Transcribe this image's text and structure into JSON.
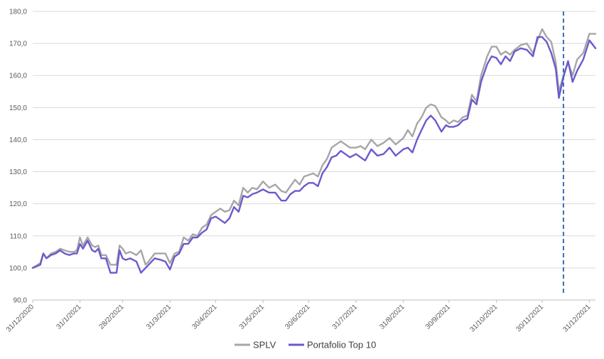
{
  "chart_data": {
    "type": "line",
    "title": "",
    "xlabel": "",
    "ylabel": "",
    "ylim": [
      90,
      180
    ],
    "y_ticks": [
      "90,0",
      "100,0",
      "110,0",
      "120,0",
      "130,0",
      "140,0",
      "150,0",
      "160,0",
      "170,0",
      "180,0"
    ],
    "x_ticks": [
      "31/12/2020",
      "31/1/2021",
      "28/2/2021",
      "31/3/2021",
      "30/4/2021",
      "31/5/2021",
      "30/6/2021",
      "31/7/2021",
      "31/8/2021",
      "30/9/2021",
      "31/10/2021",
      "30/11/2021",
      "31/12/2021"
    ],
    "grid": "horizontal",
    "legend_position": "bottom",
    "vertical_marker": {
      "x": "2021-12-14",
      "style": "dashed"
    },
    "series": [
      {
        "name": "SPLV",
        "color": "#a6a6a6",
        "points": [
          [
            "2020-12-31",
            100.0
          ],
          [
            "2021-01-05",
            101.5
          ],
          [
            "2021-01-07",
            104.5
          ],
          [
            "2021-01-09",
            103.0
          ],
          [
            "2021-01-12",
            104.5
          ],
          [
            "2021-01-15",
            105.0
          ],
          [
            "2021-01-18",
            106.0
          ],
          [
            "2021-01-21",
            105.5
          ],
          [
            "2021-01-24",
            105.0
          ],
          [
            "2021-01-27",
            105.0
          ],
          [
            "2021-01-29",
            105.5
          ],
          [
            "2021-01-31",
            109.5
          ],
          [
            "2021-02-02",
            107.0
          ],
          [
            "2021-02-05",
            109.5
          ],
          [
            "2021-02-08",
            107.0
          ],
          [
            "2021-02-10",
            106.5
          ],
          [
            "2021-02-12",
            107.0
          ],
          [
            "2021-02-14",
            104.0
          ],
          [
            "2021-02-17",
            104.0
          ],
          [
            "2021-02-20",
            101.0
          ],
          [
            "2021-02-24",
            101.0
          ],
          [
            "2021-02-26",
            107.0
          ],
          [
            "2021-02-28",
            106.0
          ],
          [
            "2021-03-02",
            104.5
          ],
          [
            "2021-03-05",
            105.0
          ],
          [
            "2021-03-09",
            104.0
          ],
          [
            "2021-03-12",
            105.5
          ],
          [
            "2021-03-15",
            101.0
          ],
          [
            "2021-03-17",
            102.0
          ],
          [
            "2021-03-21",
            104.5
          ],
          [
            "2021-03-25",
            104.5
          ],
          [
            "2021-03-28",
            104.5
          ],
          [
            "2021-03-31",
            101.5
          ],
          [
            "2021-04-03",
            104.5
          ],
          [
            "2021-04-06",
            105.0
          ],
          [
            "2021-04-09",
            109.5
          ],
          [
            "2021-04-12",
            108.5
          ],
          [
            "2021-04-15",
            110.5
          ],
          [
            "2021-04-18",
            110.0
          ],
          [
            "2021-04-21",
            112.5
          ],
          [
            "2021-04-24",
            113.5
          ],
          [
            "2021-04-27",
            116.5
          ],
          [
            "2021-04-30",
            117.5
          ],
          [
            "2021-05-03",
            118.5
          ],
          [
            "2021-05-06",
            117.5
          ],
          [
            "2021-05-09",
            118.0
          ],
          [
            "2021-05-12",
            121.0
          ],
          [
            "2021-05-15",
            119.5
          ],
          [
            "2021-05-18",
            125.0
          ],
          [
            "2021-05-21",
            123.5
          ],
          [
            "2021-05-24",
            125.0
          ],
          [
            "2021-05-27",
            124.5
          ],
          [
            "2021-05-31",
            127.0
          ],
          [
            "2021-06-04",
            125.0
          ],
          [
            "2021-06-08",
            126.0
          ],
          [
            "2021-06-12",
            124.0
          ],
          [
            "2021-06-15",
            123.5
          ],
          [
            "2021-06-18",
            125.5
          ],
          [
            "2021-06-21",
            127.5
          ],
          [
            "2021-06-24",
            126.0
          ],
          [
            "2021-06-27",
            128.5
          ],
          [
            "2021-06-30",
            129.0
          ],
          [
            "2021-07-03",
            129.5
          ],
          [
            "2021-07-06",
            128.5
          ],
          [
            "2021-07-09",
            132.0
          ],
          [
            "2021-07-12",
            134.0
          ],
          [
            "2021-07-15",
            137.5
          ],
          [
            "2021-07-18",
            138.5
          ],
          [
            "2021-07-21",
            139.5
          ],
          [
            "2021-07-24",
            138.5
          ],
          [
            "2021-07-27",
            137.5
          ],
          [
            "2021-07-31",
            137.5
          ],
          [
            "2021-08-03",
            138.0
          ],
          [
            "2021-08-06",
            137.0
          ],
          [
            "2021-08-10",
            140.0
          ],
          [
            "2021-08-14",
            138.0
          ],
          [
            "2021-08-18",
            139.0
          ],
          [
            "2021-08-22",
            140.5
          ],
          [
            "2021-08-26",
            138.5
          ],
          [
            "2021-08-31",
            140.5
          ],
          [
            "2021-09-03",
            143.0
          ],
          [
            "2021-09-06",
            141.0
          ],
          [
            "2021-09-09",
            145.0
          ],
          [
            "2021-09-12",
            147.0
          ],
          [
            "2021-09-15",
            150.0
          ],
          [
            "2021-09-18",
            151.0
          ],
          [
            "2021-09-21",
            150.5
          ],
          [
            "2021-09-25",
            147.0
          ],
          [
            "2021-09-28",
            146.0
          ],
          [
            "2021-09-30",
            145.0
          ],
          [
            "2021-10-03",
            146.0
          ],
          [
            "2021-10-06",
            145.5
          ],
          [
            "2021-10-09",
            147.0
          ],
          [
            "2021-10-12",
            147.5
          ],
          [
            "2021-10-15",
            154.0
          ],
          [
            "2021-10-18",
            152.0
          ],
          [
            "2021-10-21",
            160.0
          ],
          [
            "2021-10-25",
            166.0
          ],
          [
            "2021-10-28",
            169.0
          ],
          [
            "2021-10-31",
            169.0
          ],
          [
            "2021-11-03",
            166.5
          ],
          [
            "2021-11-06",
            167.5
          ],
          [
            "2021-11-09",
            166.5
          ],
          [
            "2021-11-12",
            168.0
          ],
          [
            "2021-11-16",
            169.5
          ],
          [
            "2021-11-20",
            170.0
          ],
          [
            "2021-11-24",
            167.0
          ],
          [
            "2021-11-27",
            171.0
          ],
          [
            "2021-11-30",
            174.5
          ],
          [
            "2021-12-03",
            172.0
          ],
          [
            "2021-12-06",
            170.5
          ],
          [
            "2021-12-09",
            164.0
          ],
          [
            "2021-12-11",
            155.0
          ],
          [
            "2021-12-14",
            160.0
          ],
          [
            "2021-12-17",
            164.0
          ],
          [
            "2021-12-20",
            160.0
          ],
          [
            "2021-12-23",
            165.0
          ],
          [
            "2021-12-27",
            167.0
          ],
          [
            "2021-12-31",
            173.0
          ],
          [
            "2022-01-04",
            173.0
          ]
        ]
      },
      {
        "name": "Portafolio Top 10",
        "color": "#6a5acd",
        "points": [
          [
            "2020-12-31",
            100.0
          ],
          [
            "2021-01-05",
            101.0
          ],
          [
            "2021-01-07",
            104.5
          ],
          [
            "2021-01-09",
            103.0
          ],
          [
            "2021-01-12",
            104.0
          ],
          [
            "2021-01-15",
            104.5
          ],
          [
            "2021-01-18",
            105.5
          ],
          [
            "2021-01-21",
            104.5
          ],
          [
            "2021-01-24",
            104.0
          ],
          [
            "2021-01-27",
            104.5
          ],
          [
            "2021-01-29",
            104.5
          ],
          [
            "2021-01-31",
            107.5
          ],
          [
            "2021-02-02",
            106.0
          ],
          [
            "2021-02-05",
            108.5
          ],
          [
            "2021-02-08",
            105.5
          ],
          [
            "2021-02-10",
            105.0
          ],
          [
            "2021-02-12",
            106.0
          ],
          [
            "2021-02-14",
            103.0
          ],
          [
            "2021-02-17",
            103.0
          ],
          [
            "2021-02-20",
            98.5
          ],
          [
            "2021-02-24",
            98.5
          ],
          [
            "2021-02-26",
            105.5
          ],
          [
            "2021-02-28",
            103.0
          ],
          [
            "2021-03-02",
            102.5
          ],
          [
            "2021-03-05",
            103.0
          ],
          [
            "2021-03-09",
            102.0
          ],
          [
            "2021-03-12",
            98.5
          ],
          [
            "2021-03-15",
            100.0
          ],
          [
            "2021-03-17",
            101.0
          ],
          [
            "2021-03-21",
            103.0
          ],
          [
            "2021-03-25",
            102.5
          ],
          [
            "2021-03-28",
            102.0
          ],
          [
            "2021-03-31",
            99.5
          ],
          [
            "2021-04-03",
            103.5
          ],
          [
            "2021-04-06",
            104.5
          ],
          [
            "2021-04-09",
            107.5
          ],
          [
            "2021-04-12",
            107.5
          ],
          [
            "2021-04-15",
            109.5
          ],
          [
            "2021-04-18",
            109.5
          ],
          [
            "2021-04-21",
            111.0
          ],
          [
            "2021-04-24",
            112.0
          ],
          [
            "2021-04-27",
            115.5
          ],
          [
            "2021-04-30",
            116.0
          ],
          [
            "2021-05-03",
            115.0
          ],
          [
            "2021-05-06",
            114.0
          ],
          [
            "2021-05-09",
            115.5
          ],
          [
            "2021-05-12",
            119.0
          ],
          [
            "2021-05-15",
            117.5
          ],
          [
            "2021-05-18",
            122.5
          ],
          [
            "2021-05-21",
            122.0
          ],
          [
            "2021-05-24",
            123.0
          ],
          [
            "2021-05-27",
            123.5
          ],
          [
            "2021-05-31",
            124.5
          ],
          [
            "2021-06-04",
            123.5
          ],
          [
            "2021-06-08",
            123.5
          ],
          [
            "2021-06-12",
            121.0
          ],
          [
            "2021-06-15",
            121.0
          ],
          [
            "2021-06-18",
            123.0
          ],
          [
            "2021-06-21",
            124.0
          ],
          [
            "2021-06-24",
            124.0
          ],
          [
            "2021-06-27",
            125.5
          ],
          [
            "2021-06-30",
            126.5
          ],
          [
            "2021-07-03",
            126.5
          ],
          [
            "2021-07-06",
            125.5
          ],
          [
            "2021-07-09",
            129.5
          ],
          [
            "2021-07-12",
            131.5
          ],
          [
            "2021-07-15",
            134.5
          ],
          [
            "2021-07-18",
            135.0
          ],
          [
            "2021-07-21",
            136.5
          ],
          [
            "2021-07-24",
            135.5
          ],
          [
            "2021-07-27",
            134.5
          ],
          [
            "2021-07-31",
            135.5
          ],
          [
            "2021-08-03",
            134.5
          ],
          [
            "2021-08-06",
            133.5
          ],
          [
            "2021-08-10",
            137.0
          ],
          [
            "2021-08-14",
            135.0
          ],
          [
            "2021-08-18",
            135.5
          ],
          [
            "2021-08-22",
            137.5
          ],
          [
            "2021-08-26",
            135.0
          ],
          [
            "2021-08-31",
            137.0
          ],
          [
            "2021-09-03",
            137.5
          ],
          [
            "2021-09-06",
            136.0
          ],
          [
            "2021-09-09",
            140.0
          ],
          [
            "2021-09-12",
            143.0
          ],
          [
            "2021-09-15",
            146.0
          ],
          [
            "2021-09-18",
            147.5
          ],
          [
            "2021-09-21",
            146.0
          ],
          [
            "2021-09-25",
            142.5
          ],
          [
            "2021-09-28",
            144.5
          ],
          [
            "2021-09-30",
            144.0
          ],
          [
            "2021-10-03",
            144.0
          ],
          [
            "2021-10-06",
            144.5
          ],
          [
            "2021-10-09",
            146.0
          ],
          [
            "2021-10-12",
            146.5
          ],
          [
            "2021-10-15",
            152.5
          ],
          [
            "2021-10-18",
            151.0
          ],
          [
            "2021-10-21",
            158.0
          ],
          [
            "2021-10-25",
            163.5
          ],
          [
            "2021-10-28",
            166.0
          ],
          [
            "2021-10-31",
            165.5
          ],
          [
            "2021-11-03",
            163.5
          ],
          [
            "2021-11-06",
            166.0
          ],
          [
            "2021-11-09",
            164.5
          ],
          [
            "2021-11-12",
            167.5
          ],
          [
            "2021-11-16",
            168.5
          ],
          [
            "2021-11-20",
            168.0
          ],
          [
            "2021-11-24",
            166.0
          ],
          [
            "2021-11-27",
            172.0
          ],
          [
            "2021-11-30",
            172.0
          ],
          [
            "2021-12-03",
            170.5
          ],
          [
            "2021-12-06",
            167.0
          ],
          [
            "2021-12-09",
            162.0
          ],
          [
            "2021-12-11",
            153.0
          ],
          [
            "2021-12-14",
            159.5
          ],
          [
            "2021-12-17",
            164.5
          ],
          [
            "2021-12-20",
            158.0
          ],
          [
            "2021-12-23",
            161.5
          ],
          [
            "2021-12-27",
            165.0
          ],
          [
            "2021-12-31",
            171.0
          ],
          [
            "2022-01-04",
            168.5
          ]
        ]
      }
    ]
  }
}
